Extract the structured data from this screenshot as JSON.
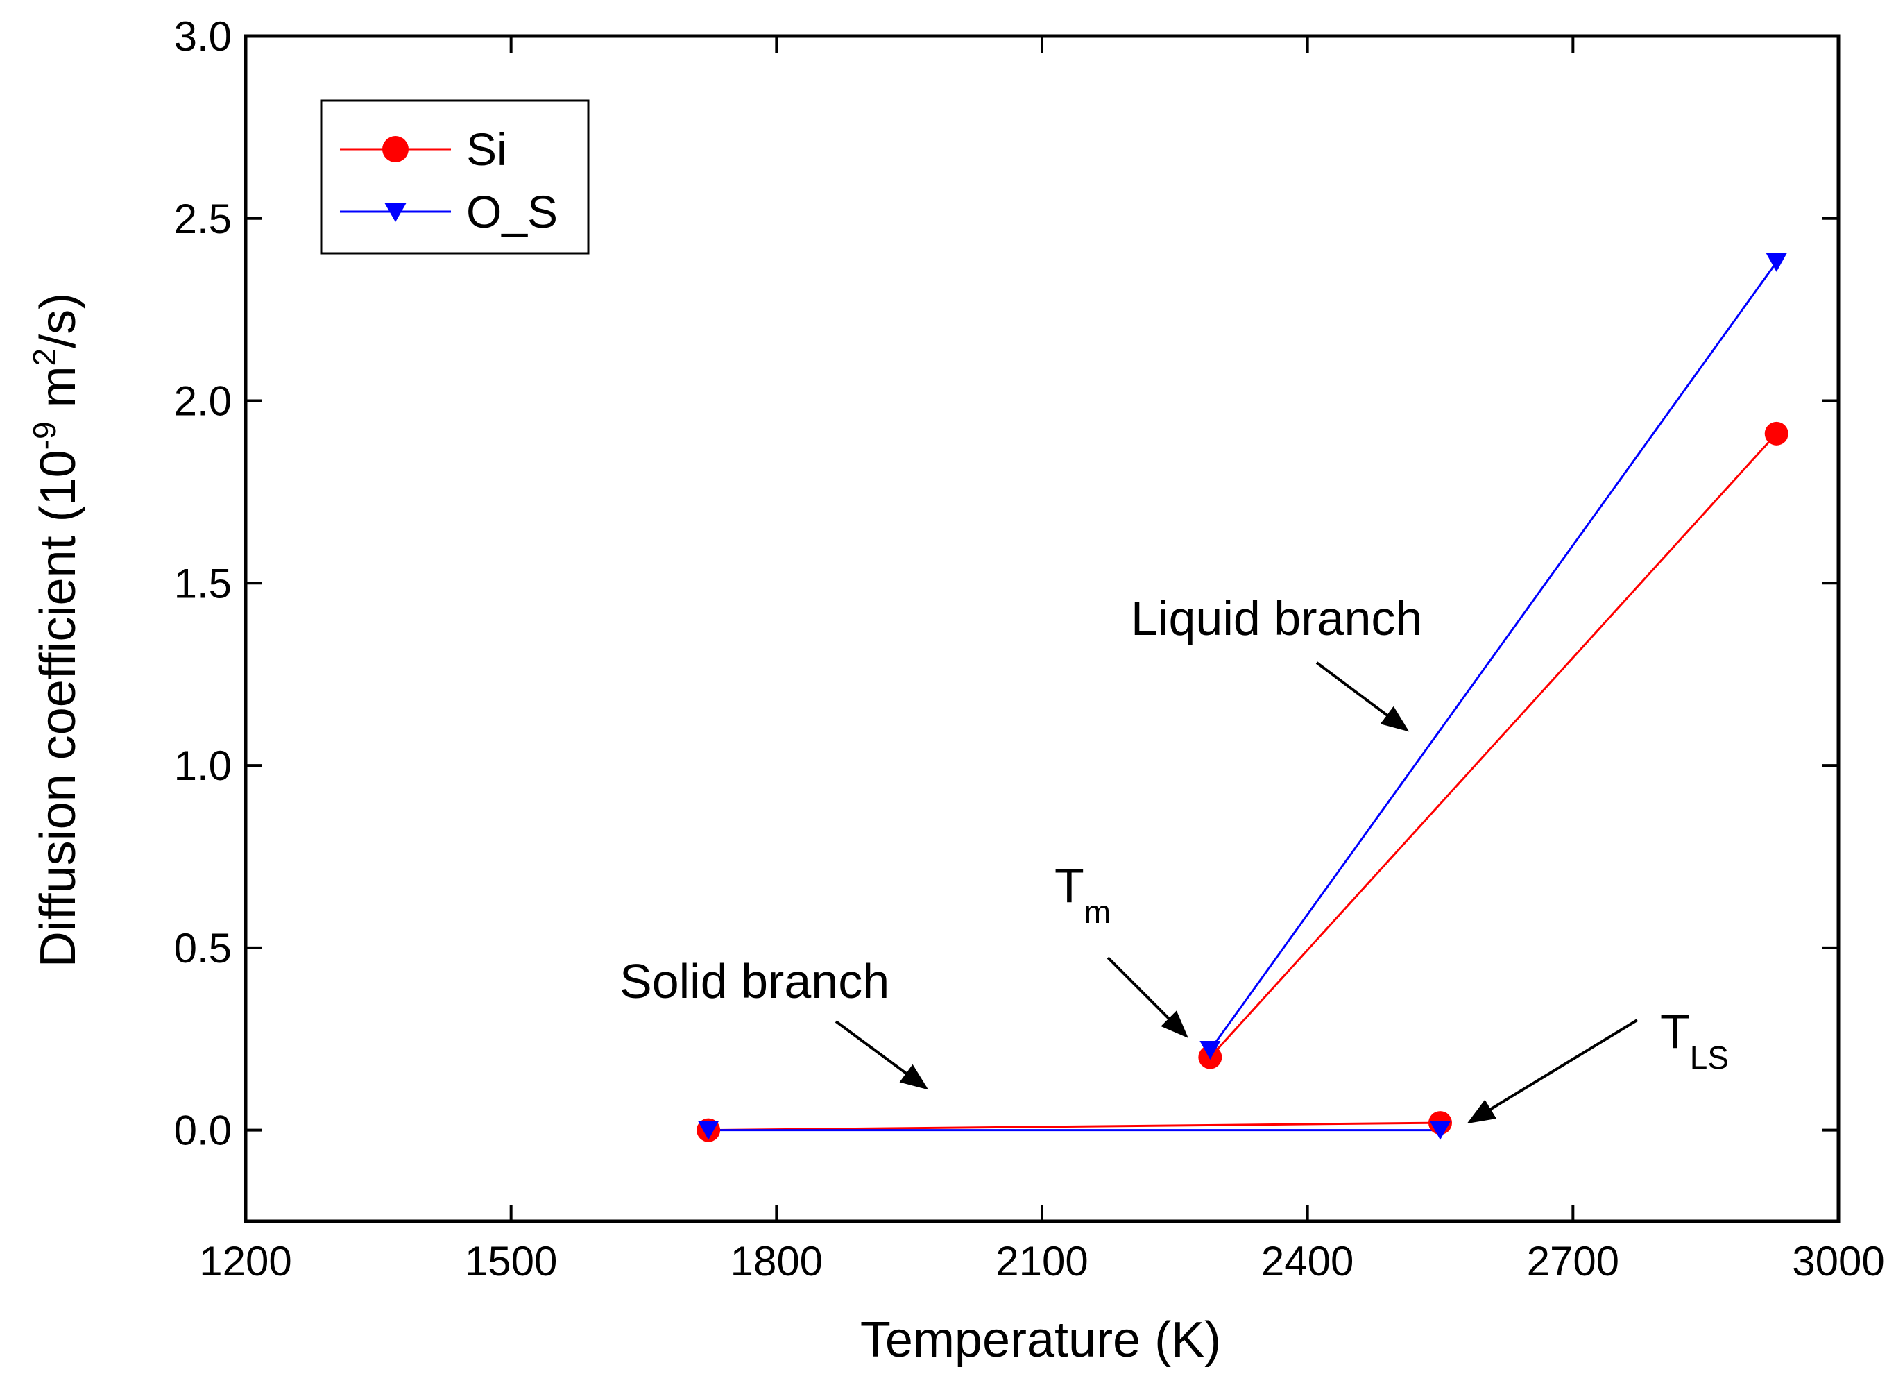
{
  "chart_data": {
    "type": "line",
    "title": "",
    "xlabel": "Temperature (K)",
    "ylabel_main": "Diffusion coefficient (10",
    "ylabel_exp1": "-9",
    "ylabel_mid": " m",
    "ylabel_exp2": "2",
    "ylabel_end": "/s)",
    "xlim": [
      1200,
      3000
    ],
    "ylim": [
      -0.25,
      3.0
    ],
    "xticks": [
      1200,
      1500,
      1800,
      2100,
      2400,
      2700,
      3000
    ],
    "xtick_labels": [
      "1200",
      "1500",
      "1800",
      "2100",
      "2400",
      "2700",
      "3000"
    ],
    "yticks": [
      0.0,
      0.5,
      1.0,
      1.5,
      2.0,
      2.5,
      3.0
    ],
    "ytick_labels": [
      "0.0",
      "0.5",
      "1.0",
      "1.5",
      "2.0",
      "2.5",
      "3.0"
    ],
    "legend_position": "top-left",
    "series": [
      {
        "name": "Si",
        "color": "#ff0000",
        "marker": "circle",
        "segments": [
          {
            "branch": "solid",
            "x": [
              1723,
              2550
            ],
            "y": [
              0.0,
              0.02
            ]
          },
          {
            "branch": "liquid",
            "x": [
              2290,
              2930
            ],
            "y": [
              0.2,
              1.91
            ]
          }
        ]
      },
      {
        "name": "O_S",
        "color": "#0000ff",
        "marker": "triangle-down",
        "segments": [
          {
            "branch": "solid",
            "x": [
              1723,
              2550
            ],
            "y": [
              0.0,
              0.0
            ]
          },
          {
            "branch": "liquid",
            "x": [
              2290,
              2930
            ],
            "y": [
              0.22,
              2.38
            ]
          }
        ]
      }
    ],
    "annotations": {
      "liquid": {
        "text": "Liquid branch"
      },
      "solid": {
        "text": "Solid branch"
      },
      "tm": {
        "main": "T",
        "sub": "m"
      },
      "tls": {
        "main": "T",
        "sub": "LS"
      }
    }
  }
}
